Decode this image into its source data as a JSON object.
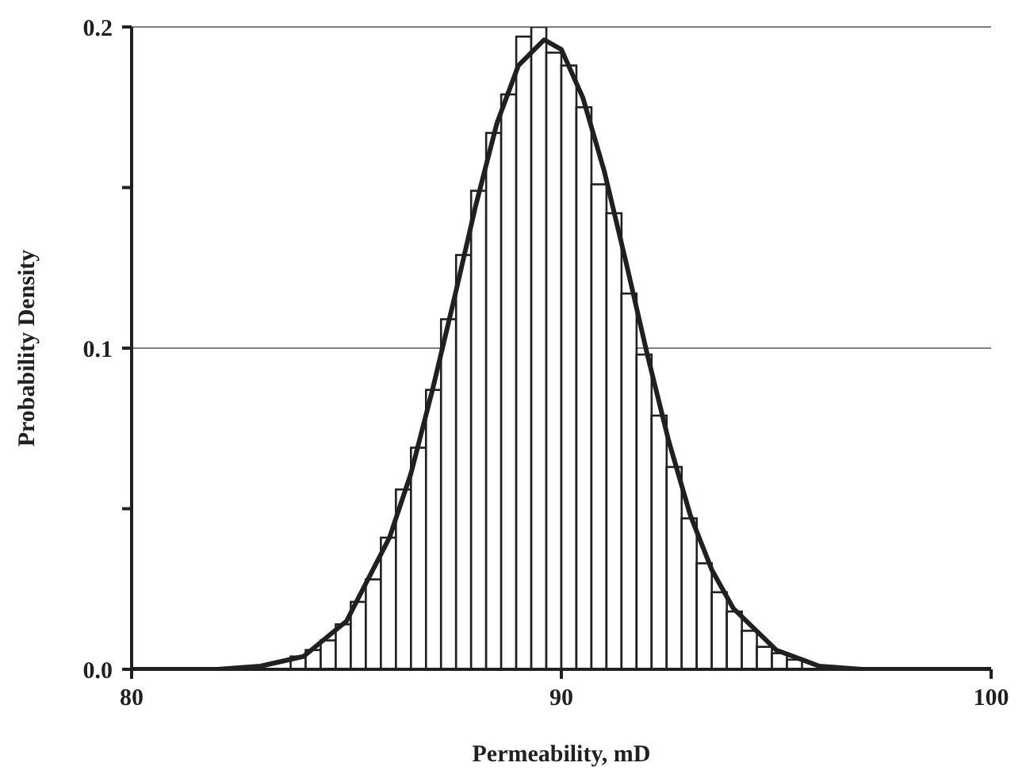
{
  "chart_data": {
    "type": "histogram",
    "xlabel": "Permeability, mD",
    "ylabel": "Probability Density",
    "bins": [
      83.0,
      83.35,
      83.7,
      84.05,
      84.4,
      84.75,
      85.1,
      85.45,
      85.8,
      86.15,
      86.5,
      86.85,
      87.2,
      87.55,
      87.9,
      88.25,
      88.6,
      88.95,
      89.3,
      89.65,
      90.0,
      90.35,
      90.7,
      91.05,
      91.4,
      91.75,
      92.1,
      92.45,
      92.8,
      93.15,
      93.5,
      93.85,
      94.2,
      94.55,
      94.9,
      95.25,
      95.6,
      95.95
    ],
    "values": [
      null,
      null,
      0.004,
      0.006,
      0.009,
      0.014,
      0.021,
      0.028,
      0.041,
      0.056,
      0.069,
      0.087,
      0.109,
      0.129,
      0.149,
      0.167,
      0.179,
      0.197,
      0.2,
      0.192,
      0.188,
      0.175,
      0.151,
      0.142,
      0.117,
      0.098,
      0.079,
      0.063,
      0.047,
      0.033,
      0.024,
      0.018,
      0.012,
      0.007,
      0.005,
      0.003,
      null
    ],
    "color": "#ffffff",
    "series": [
      {
        "type": "line",
        "color": "#231f20",
        "x": [
          80,
          82,
          83,
          84,
          85,
          86,
          86.5,
          87,
          87.5,
          88,
          88.5,
          89,
          89.6,
          90,
          90.5,
          91,
          91.5,
          92,
          92.5,
          93,
          93.5,
          94,
          95,
          96,
          97,
          98,
          100
        ],
        "values": [
          0,
          0,
          0.001,
          0.004,
          0.015,
          0.041,
          0.061,
          0.087,
          0.115,
          0.144,
          0.17,
          0.188,
          0.196,
          0.193,
          0.178,
          0.155,
          0.127,
          0.098,
          0.071,
          0.048,
          0.031,
          0.019,
          0.006,
          0.001,
          0,
          0,
          0
        ]
      }
    ],
    "xlim": [
      80,
      100
    ],
    "xticks": [
      80,
      90,
      100
    ],
    "ylim": [
      0,
      0.2
    ],
    "yticks": [
      {
        "value": 0,
        "label": "0.0"
      },
      {
        "value": 0.05,
        "label": null
      },
      0.1,
      {
        "value": 0.15,
        "label": null
      },
      0.2
    ],
    "grid": "y",
    "marker": "none",
    "line_style": "solid"
  }
}
